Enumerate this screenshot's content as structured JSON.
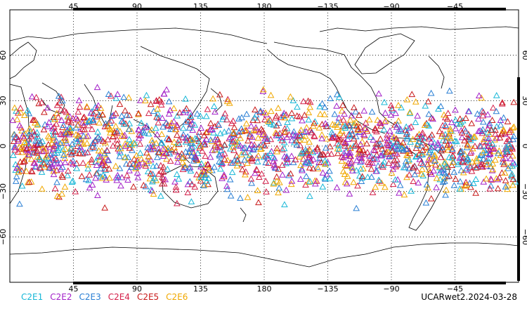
{
  "chart_data": {
    "type": "scatter",
    "projection": "cylindrical-equidistant",
    "title": "",
    "xlabel": "",
    "ylabel": "",
    "x_ticks": [
      "45",
      "90",
      "135",
      "180",
      "−135",
      "−90",
      "−45"
    ],
    "x_tick_values": [
      45,
      90,
      135,
      180,
      225,
      270,
      315
    ],
    "y_ticks": [
      "60",
      "30",
      "0",
      "−30",
      "−60"
    ],
    "y_tick_values": [
      60,
      30,
      0,
      -30,
      -60
    ],
    "xlim": [
      0,
      360
    ],
    "ylim": [
      -90,
      90
    ],
    "grid": true,
    "lat_band": [
      -45,
      45
    ],
    "marker": "open-triangle",
    "series": [
      {
        "name": "C2E1",
        "color": "#17b7d7"
      },
      {
        "name": "C2E2",
        "color": "#a321c9"
      },
      {
        "name": "C2E3",
        "color": "#2a7fd4"
      },
      {
        "name": "C2E4",
        "color": "#d4204a"
      },
      {
        "name": "C2E5",
        "color": "#c81a1a"
      },
      {
        "name": "C2E6",
        "color": "#f0a800"
      }
    ]
  },
  "footer": "UCARwet2.2024-03-28"
}
